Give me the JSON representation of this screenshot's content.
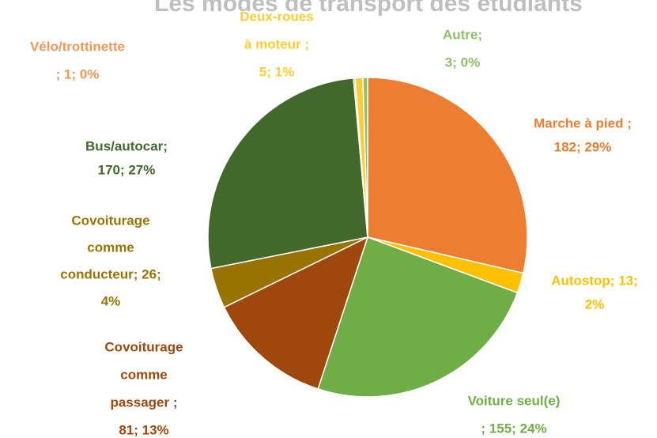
{
  "chart_data": {
    "type": "pie",
    "title": "Les modes de transport des étudiants",
    "values": [
      182,
      13,
      155,
      81,
      26,
      170,
      1,
      5,
      3
    ],
    "value_labels": [
      [
        "Marche à pied ;",
        "182; 29%"
      ],
      [
        "Autostop; 13;",
        "2%"
      ],
      [
        "Voiture seul(e)",
        "; 155; 24%"
      ],
      [
        "Covoiturage",
        "comme",
        "passager ;",
        "81; 13%"
      ],
      [
        "Covoiturage",
        "comme",
        "conducteur; 26;",
        "4%"
      ],
      [
        "Bus/autocar;",
        "170; 27%"
      ],
      [
        "Vélo/trottinette",
        "; 1; 0%"
      ],
      [
        "Deux-roues",
        "à moteur ;",
        "5; 1%"
      ],
      [
        "Autre;",
        "3; 0%"
      ]
    ],
    "colors": [
      "#ED7D31",
      "#FFC000",
      "#70AD47",
      "#9E480E",
      "#997300",
      "#43682B",
      "#F1975A",
      "#FFCD33",
      "#8CC168"
    ]
  }
}
